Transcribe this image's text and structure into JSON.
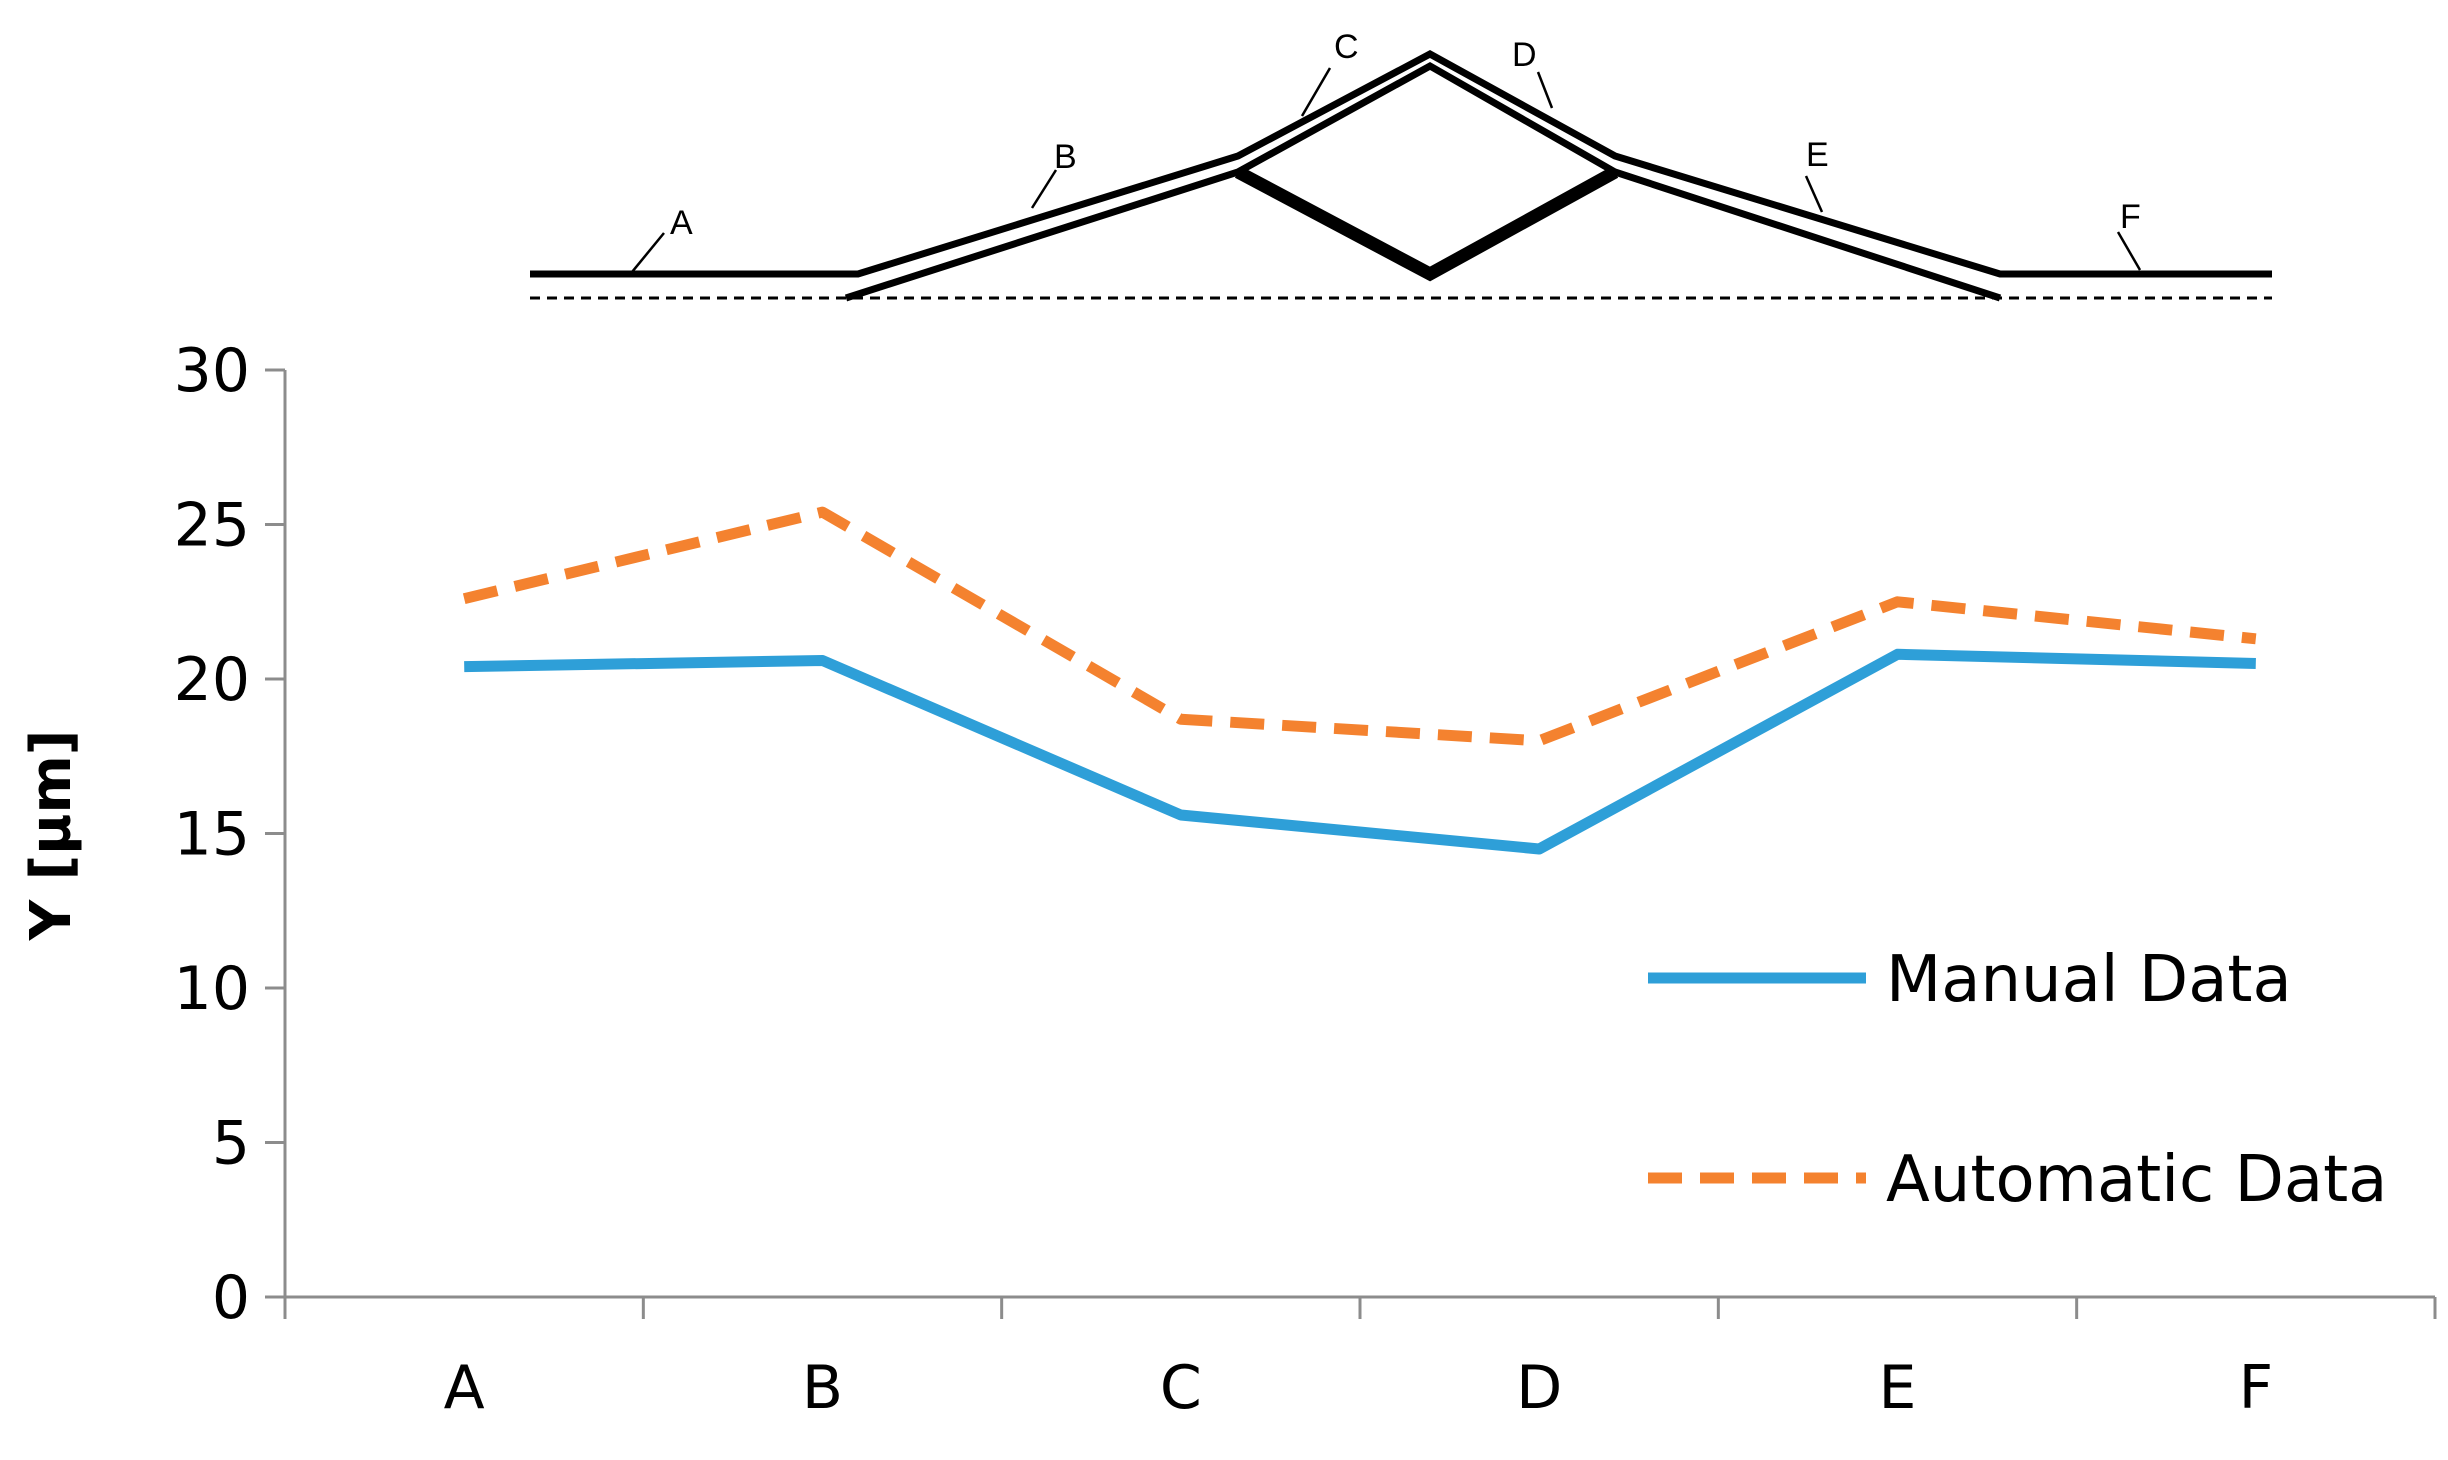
{
  "diagram": {
    "labels": [
      "A",
      "B",
      "C",
      "D",
      "E",
      "F"
    ]
  },
  "chart_data": {
    "type": "line",
    "categories": [
      "A",
      "B",
      "C",
      "D",
      "E",
      "F"
    ],
    "series": [
      {
        "name": "Manual Data",
        "values": [
          20.4,
          20.6,
          15.6,
          14.5,
          20.8,
          20.5
        ],
        "color": "#2e9fd8",
        "style": "solid"
      },
      {
        "name": "Automatic Data",
        "values": [
          22.6,
          25.4,
          18.7,
          18.0,
          22.5,
          21.3
        ],
        "color": "#f4822f",
        "style": "dashed"
      }
    ],
    "title": "",
    "xlabel": "",
    "ylabel": "Y [µm]",
    "ylim": [
      0,
      30
    ],
    "yticks": [
      0,
      5,
      10,
      15,
      20,
      25,
      30
    ],
    "grid": false,
    "legend": "right"
  }
}
